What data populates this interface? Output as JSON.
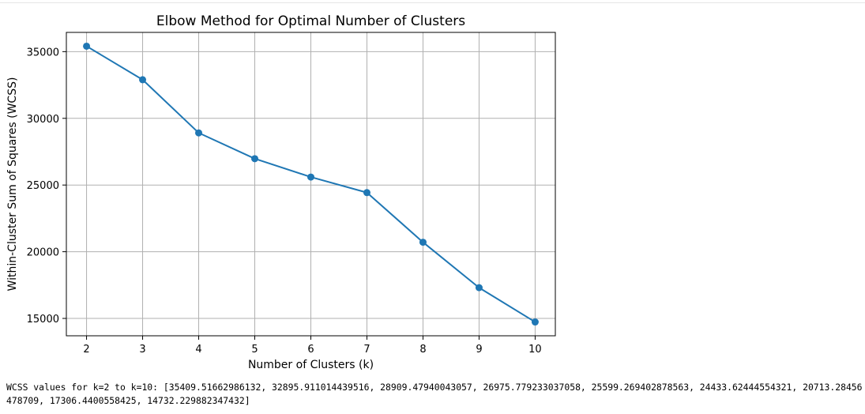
{
  "chart_data": {
    "type": "line",
    "title": "Elbow Method for Optimal Number of Clusters",
    "xlabel": "Number of Clusters (k)",
    "ylabel": "Within-Cluster Sum of Squares (WCSS)",
    "x": [
      2,
      3,
      4,
      5,
      6,
      7,
      8,
      9,
      10
    ],
    "series": [
      {
        "values": [
          35409.52,
          32895.91,
          28909.48,
          26975.78,
          25599.27,
          24433.62,
          20713.28,
          17306.44,
          14732.23
        ]
      }
    ],
    "x_ticks": [
      "2",
      "3",
      "4",
      "5",
      "6",
      "7",
      "8",
      "9",
      "10"
    ],
    "y_ticks": [
      "15000",
      "20000",
      "25000",
      "30000",
      "35000"
    ],
    "y_tick_values": [
      15000,
      20000,
      25000,
      30000,
      35000
    ],
    "xlim": [
      1.64,
      10.36
    ],
    "ylim": [
      13698.39,
      36443.35
    ],
    "grid": true,
    "marker": "circle",
    "line_color": "#1f77b4"
  },
  "output": {
    "text": "WCSS values for k=2 to k=10: [35409.51662986132, 32895.911014439516, 28909.47940043057, 26975.779233037058, 25599.269402878563, 24433.62444554321, 20713.28456478709, 17306.4400558425, 14732.229882347432]"
  }
}
